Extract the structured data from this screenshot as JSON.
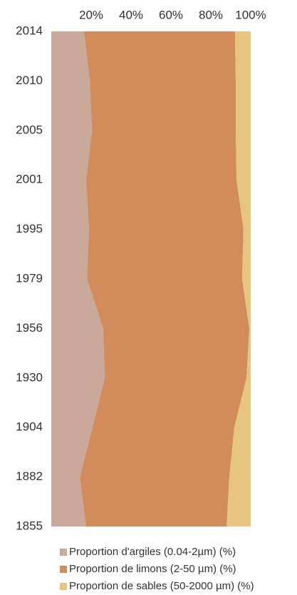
{
  "chart_data": {
    "type": "stacked_area_horizontal",
    "categories": [
      "2014",
      "2010",
      "2005",
      "2001",
      "1995",
      "1979",
      "1956",
      "1930",
      "1904",
      "1882",
      "1855"
    ],
    "series": [
      {
        "name": "Proportion d'argiles (0.04-2µm) (%)",
        "color": "#c8a99a",
        "values": [
          16.4,
          19.3,
          20.4,
          17.5,
          18.9,
          17.9,
          26.0,
          26.8,
          20.7,
          14.3,
          17.5
        ]
      },
      {
        "name": "Proportion de limons (2-50 µm) (%)",
        "color": "#d28b5a",
        "values": [
          75.7,
          73.2,
          72.1,
          75.4,
          77.5,
          77.8,
          73.3,
          71.1,
          71.1,
          75.0,
          70.4
        ]
      },
      {
        "name": "Proportion de sables (50-2000 µm) (%)",
        "color": "#e8c57e",
        "values": [
          7.9,
          7.5,
          7.5,
          7.1,
          3.6,
          4.3,
          0.7,
          2.1,
          8.2,
          10.7,
          12.1
        ]
      }
    ],
    "xlim": [
      0,
      100
    ],
    "xticks": [
      {
        "value": 20,
        "label": "20%"
      },
      {
        "value": 40,
        "label": "40%"
      },
      {
        "value": 60,
        "label": "60%"
      },
      {
        "value": 80,
        "label": "80%"
      },
      {
        "value": 100,
        "label": "100%"
      }
    ],
    "grid": false,
    "legend": "bottom"
  }
}
